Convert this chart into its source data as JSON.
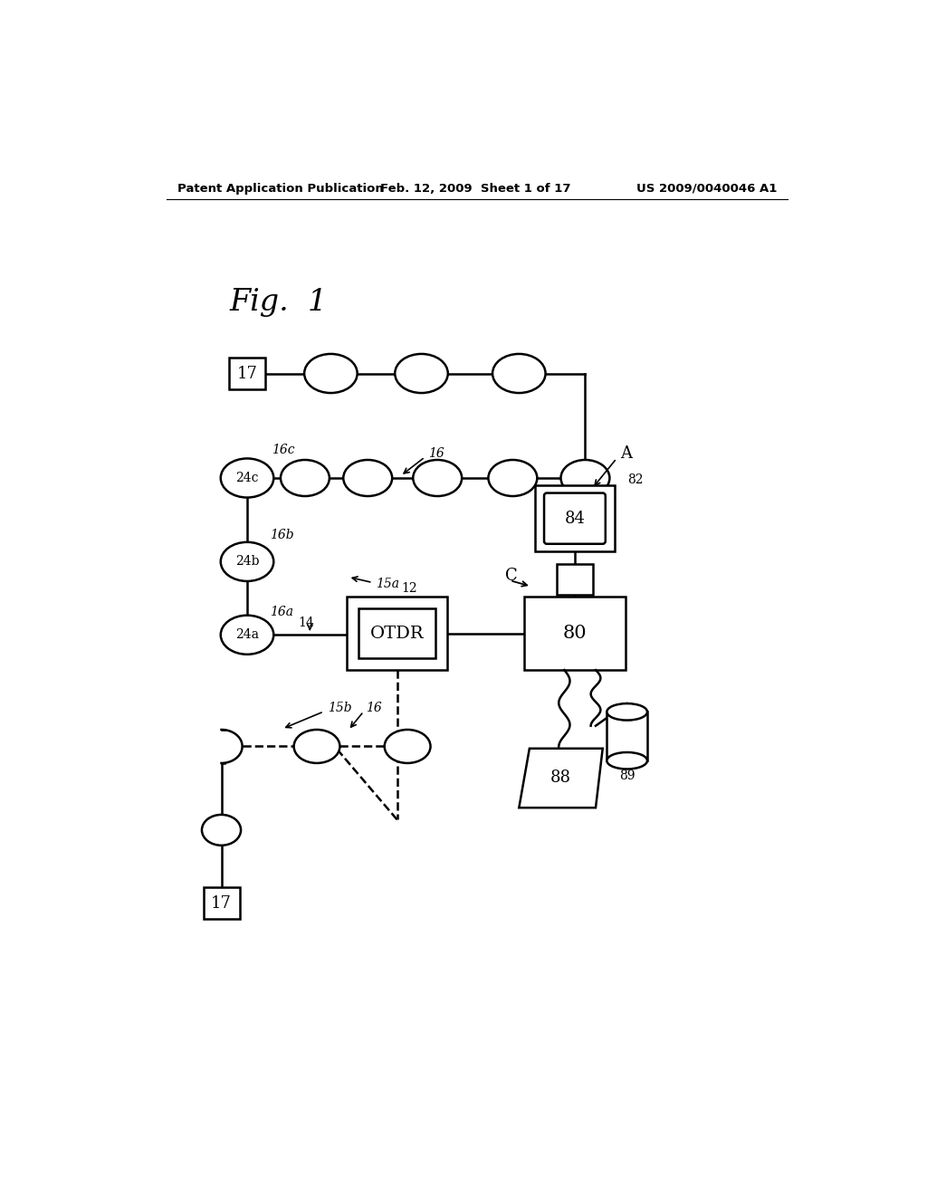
{
  "bg_color": "#ffffff",
  "header_left": "Patent Application Publication",
  "header_center": "Feb. 12, 2009  Sheet 1 of 17",
  "header_right": "US 2009/0040046 A1"
}
